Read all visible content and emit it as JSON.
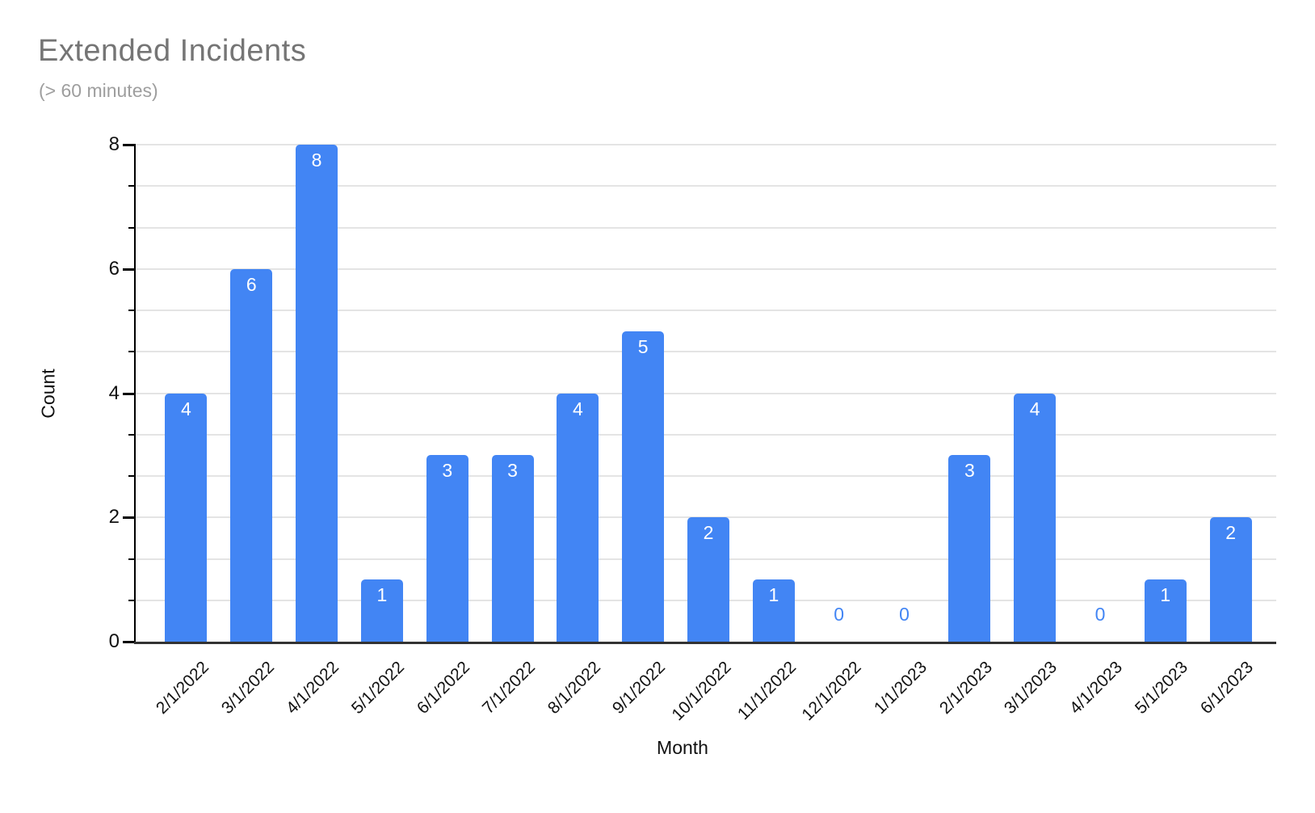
{
  "header": {
    "title": "Extended Incidents",
    "subtitle": "(> 60 minutes)"
  },
  "chart_data": {
    "type": "bar",
    "title": "Extended Incidents",
    "subtitle": "(> 60 minutes)",
    "xlabel": "Month",
    "ylabel": "Count",
    "categories": [
      "2/1/2022",
      "3/1/2022",
      "4/1/2022",
      "5/1/2022",
      "6/1/2022",
      "7/1/2022",
      "8/1/2022",
      "9/1/2022",
      "10/1/2022",
      "11/1/2022",
      "12/1/2022",
      "1/1/2023",
      "2/1/2023",
      "3/1/2023",
      "4/1/2023",
      "5/1/2023",
      "6/1/2023"
    ],
    "values": [
      4,
      6,
      8,
      1,
      3,
      3,
      4,
      5,
      2,
      1,
      0,
      0,
      3,
      4,
      0,
      1,
      2
    ],
    "ylim": [
      0,
      8
    ],
    "yticks": [
      0,
      2,
      4,
      6,
      8
    ],
    "minor_divisions": 12,
    "grid": true,
    "legend": "none",
    "data_labels": "shown; white inside bar top, blue above axis for zero values",
    "x_label_rotation_deg": 45
  },
  "colors": {
    "bar": "#4285f4",
    "bar-label": "#ffffff",
    "zero-label": "#4285f4",
    "title": "#757575",
    "subtitle": "#9e9e9e",
    "axis-text": "#111111",
    "gridline": "#e4e4e4",
    "baseline": "#333333",
    "axis-line": "#000000",
    "tick": "#000000"
  }
}
